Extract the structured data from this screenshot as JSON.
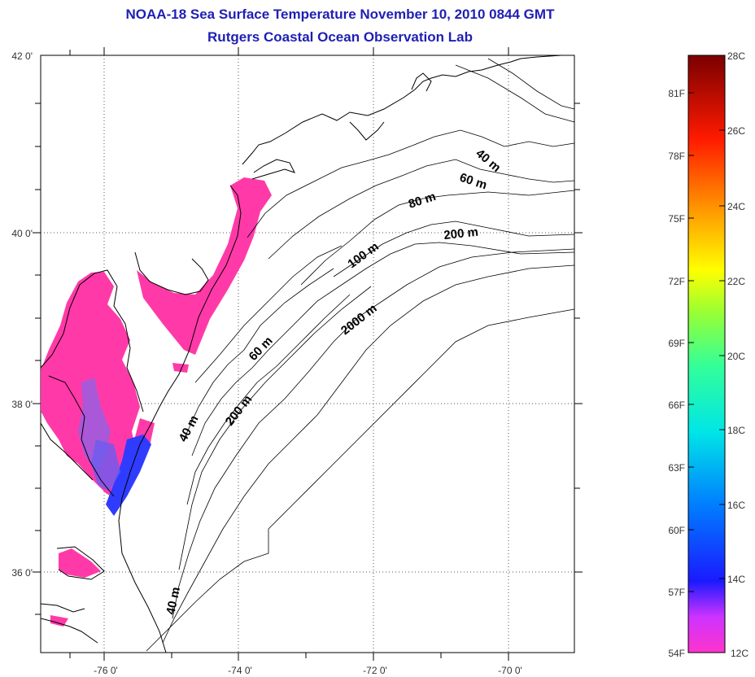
{
  "title": {
    "line1": "NOAA-18 Sea Surface Temperature November 10, 2010 0844 GMT",
    "line2": "Rutgers Coastal Ocean Observation Lab"
  },
  "map": {
    "lat_labels": [
      "42 0'",
      "40 0'",
      "38 0'",
      "36 0'"
    ],
    "lon_labels": [
      "-76 0'",
      "-74 0'",
      "-72 0'",
      "-70 0'"
    ],
    "contour_labels": [
      "40 m",
      "60 m",
      "80 m",
      "200 m",
      "100 m",
      "2000 m",
      "60 m",
      "200 m",
      "40 m",
      "40 m"
    ],
    "grid": true,
    "colors": {
      "coast": "#000000",
      "sst_warm": "#ff3aa8",
      "sst_cool": "#2f3cff",
      "title": "#1f1fb4"
    }
  },
  "colorbar": {
    "f_labels": [
      "81F",
      "78F",
      "75F",
      "72F",
      "69F",
      "66F",
      "63F",
      "60F",
      "57F",
      "54F"
    ],
    "c_labels": [
      "28C",
      "26C",
      "24C",
      "22C",
      "20C",
      "18C",
      "16C",
      "14C",
      "12C"
    ]
  }
}
